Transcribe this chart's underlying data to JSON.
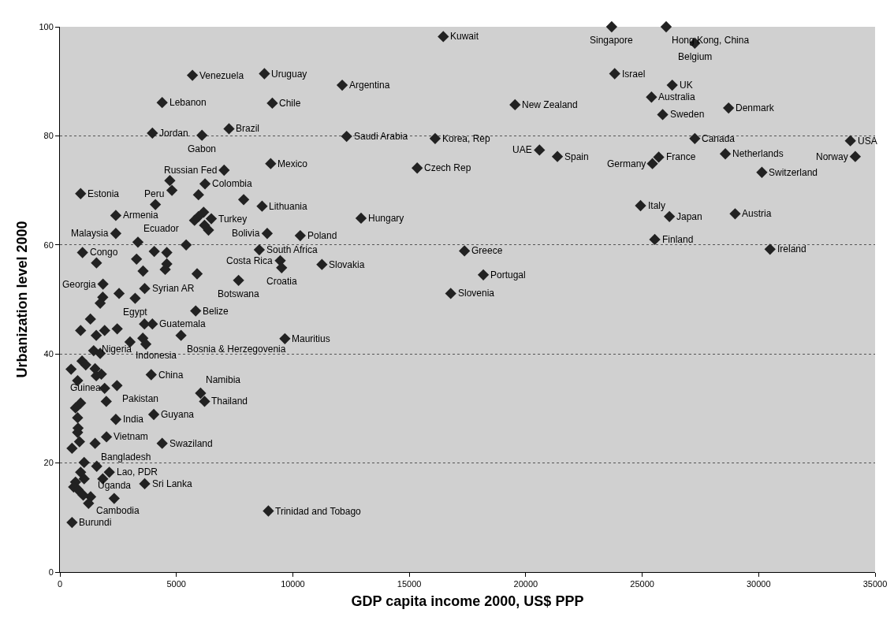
{
  "chart_data": {
    "type": "scatter",
    "xlabel": "GDP capita income 2000, US$ PPP",
    "ylabel": "Urbanization level 2000",
    "xlim": [
      0,
      35000
    ],
    "xticks": [
      0,
      5000,
      10000,
      15000,
      20000,
      25000,
      30000,
      35000
    ],
    "ylim": [
      0,
      100
    ],
    "yticks": [
      0,
      20,
      40,
      60,
      80,
      100
    ],
    "grid": "y",
    "marker": "diamond",
    "series": [
      {
        "color": "#222222",
        "x": [
          16460,
          23690,
          26030,
          27260,
          23820,
          26290,
          25400,
          19540,
          28710,
          25880,
          16110,
          27260,
          33940,
          20590,
          21360,
          25710,
          25440,
          28570,
          34150,
          15340,
          30140,
          24930,
          26170,
          28990,
          25540,
          30490,
          17370,
          18180,
          11250,
          9460,
          9520,
          16780,
          9660,
          8950,
          5690,
          8780,
          12120,
          4390,
          9120,
          3970,
          6100,
          7260,
          12310,
          9050,
          7050,
          12930,
          8680,
          8900,
          10320,
          7670,
          5830,
          8560,
          4720,
          6230,
          890,
          2400,
          6500,
          2400,
          3350,
          970,
          1850,
          3640,
          3230,
          3970,
          5200,
          1560,
          3010,
          3920,
          2450,
          6040,
          6210,
          1990,
          2400,
          4030,
          2000,
          1510,
          4390,
          2120,
          3640,
          1320,
          2330,
          520,
          4810,
          5950,
          7890,
          4100,
          6170,
          5950,
          5780,
          6210,
          6380,
          5420,
          4050,
          4590,
          1570,
          3290,
          4590,
          4520,
          3570,
          5890,
          2540,
          1840,
          1730,
          1310,
          3630,
          890,
          1920,
          2460,
          3560,
          3690,
          1450,
          1730,
          480,
          950,
          1110,
          1510,
          1780,
          1560,
          760,
          1920,
          890,
          670,
          760,
          780,
          760,
          840,
          520,
          1040,
          1580,
          890,
          1840,
          1040,
          670,
          590,
          780,
          1000,
          1230
        ],
        "values": [
          98.2,
          100,
          100,
          97.0,
          91.4,
          89.3,
          87.1,
          85.7,
          85.1,
          83.9,
          79.5,
          79.5,
          79.1,
          77.4,
          76.2,
          76.1,
          74.9,
          76.7,
          76.2,
          74.1,
          73.3,
          67.2,
          65.2,
          65.7,
          61.0,
          59.2,
          58.9,
          54.5,
          56.4,
          57.1,
          55.8,
          51.1,
          42.8,
          11.2,
          91.1,
          91.4,
          89.3,
          86.1,
          86.0,
          80.5,
          80.1,
          81.3,
          79.9,
          74.9,
          73.7,
          64.9,
          67.1,
          62.1,
          61.7,
          53.5,
          47.9,
          59.1,
          71.8,
          71.2,
          69.4,
          65.4,
          64.8,
          62.1,
          60.5,
          58.6,
          52.8,
          52.0,
          50.2,
          45.5,
          43.4,
          43.4,
          42.2,
          36.2,
          34.2,
          32.8,
          31.3,
          31.3,
          28.0,
          28.9,
          24.8,
          23.6,
          23.6,
          18.3,
          16.2,
          13.8,
          13.5,
          9.1,
          70.0,
          69.2,
          68.3,
          67.4,
          66.0,
          65.2,
          64.5,
          63.6,
          62.7,
          60.0,
          58.8,
          58.6,
          56.7,
          57.4,
          56.5,
          55.5,
          55.2,
          54.7,
          51.1,
          50.4,
          49.3,
          46.4,
          45.5,
          44.3,
          44.3,
          44.6,
          42.9,
          41.8,
          40.6,
          40.1,
          37.2,
          38.7,
          38.0,
          37.3,
          36.3,
          36.0,
          35.1,
          33.7,
          31.0,
          30.1,
          28.3,
          26.4,
          25.6,
          23.9,
          22.7,
          20.1,
          19.4,
          18.3,
          17.1,
          17.1,
          16.5,
          15.6,
          15.1,
          14.1,
          12.6
        ]
      }
    ],
    "annotations": [
      {
        "text": "Kuwait",
        "x": 16460,
        "y": 98.2
      },
      {
        "text": "Singapore",
        "x": 23690,
        "y": 100
      },
      {
        "text": "Hong Kong, China",
        "x": 26030,
        "y": 100
      },
      {
        "text": "Belgium",
        "x": 27260,
        "y": 97.0
      },
      {
        "text": "Israel",
        "x": 23820,
        "y": 91.4
      },
      {
        "text": "UK",
        "x": 26290,
        "y": 89.3
      },
      {
        "text": "Australia",
        "x": 25400,
        "y": 87.1
      },
      {
        "text": "New Zealand",
        "x": 19540,
        "y": 85.7
      },
      {
        "text": "Denmark",
        "x": 28710,
        "y": 85.1
      },
      {
        "text": "Sweden",
        "x": 25880,
        "y": 83.9
      },
      {
        "text": "Korea, Rep",
        "x": 16110,
        "y": 79.5
      },
      {
        "text": "Canada",
        "x": 27260,
        "y": 79.5
      },
      {
        "text": "USA",
        "x": 33940,
        "y": 79.1
      },
      {
        "text": "UAE",
        "x": 20590,
        "y": 77.4
      },
      {
        "text": "Spain",
        "x": 21360,
        "y": 76.2
      },
      {
        "text": "France",
        "x": 25710,
        "y": 76.1
      },
      {
        "text": "Germany",
        "x": 25440,
        "y": 74.9
      },
      {
        "text": "Netherlands",
        "x": 28570,
        "y": 76.7
      },
      {
        "text": "Norway",
        "x": 34150,
        "y": 76.2
      },
      {
        "text": "Czech Rep",
        "x": 15340,
        "y": 74.1
      },
      {
        "text": "Switzerland",
        "x": 30140,
        "y": 73.3
      },
      {
        "text": "Italy",
        "x": 24930,
        "y": 67.2
      },
      {
        "text": "Japan",
        "x": 26170,
        "y": 65.2
      },
      {
        "text": "Austria",
        "x": 28990,
        "y": 65.7
      },
      {
        "text": "Finland",
        "x": 25540,
        "y": 61.0
      },
      {
        "text": "Ireland",
        "x": 30490,
        "y": 59.2
      },
      {
        "text": "Greece",
        "x": 17370,
        "y": 58.9
      },
      {
        "text": "Portugal",
        "x": 18180,
        "y": 54.5
      },
      {
        "text": "Slovakia",
        "x": 11250,
        "y": 56.4
      },
      {
        "text": "Costa Rica",
        "x": 9460,
        "y": 57.1
      },
      {
        "text": "Croatia",
        "x": 9520,
        "y": 55.8
      },
      {
        "text": "Slovenia",
        "x": 16780,
        "y": 51.1
      },
      {
        "text": "Mauritius",
        "x": 9660,
        "y": 42.8
      },
      {
        "text": "Trinidad and Tobago",
        "x": 8950,
        "y": 11.2
      },
      {
        "text": "Venezuela",
        "x": 5690,
        "y": 91.1
      },
      {
        "text": "Uruguay",
        "x": 8780,
        "y": 91.4
      },
      {
        "text": "Argentina",
        "x": 12120,
        "y": 89.3
      },
      {
        "text": "Lebanon",
        "x": 4390,
        "y": 86.1
      },
      {
        "text": "Chile",
        "x": 9120,
        "y": 86.0
      },
      {
        "text": "Jordan",
        "x": 3970,
        "y": 80.5
      },
      {
        "text": "Gabon",
        "x": 6100,
        "y": 80.1
      },
      {
        "text": "Brazil",
        "x": 7260,
        "y": 81.3
      },
      {
        "text": "Saudi Arabia",
        "x": 12310,
        "y": 79.9
      },
      {
        "text": "Mexico",
        "x": 9050,
        "y": 74.9
      },
      {
        "text": "Russian Fed",
        "x": 7050,
        "y": 73.7
      },
      {
        "text": "Hungary",
        "x": 12930,
        "y": 64.9
      },
      {
        "text": "Lithuania",
        "x": 8680,
        "y": 67.1
      },
      {
        "text": "Bolivia",
        "x": 8900,
        "y": 62.1
      },
      {
        "text": "Poland",
        "x": 10320,
        "y": 61.7
      },
      {
        "text": "Botswana",
        "x": 7670,
        "y": 53.5
      },
      {
        "text": "Belize",
        "x": 5830,
        "y": 47.9
      },
      {
        "text": "South Africa",
        "x": 8560,
        "y": 59.1
      },
      {
        "text": "Peru",
        "x": 4720,
        "y": 71.8
      },
      {
        "text": "Colombia",
        "x": 6230,
        "y": 71.2
      },
      {
        "text": "Estonia",
        "x": 890,
        "y": 69.4
      },
      {
        "text": "Armenia",
        "x": 2400,
        "y": 65.4
      },
      {
        "text": "Turkey",
        "x": 6500,
        "y": 64.8
      },
      {
        "text": "Malaysia",
        "x": 2400,
        "y": 62.1
      },
      {
        "text": "Ecuador",
        "x": 3350,
        "y": 60.5
      },
      {
        "text": "Congo",
        "x": 970,
        "y": 58.6
      },
      {
        "text": "Georgia",
        "x": 1850,
        "y": 52.8
      },
      {
        "text": "Syrian AR",
        "x": 3640,
        "y": 52.0
      },
      {
        "text": "Egypt",
        "x": 3230,
        "y": 50.2
      },
      {
        "text": "Guatemala",
        "x": 3970,
        "y": 45.5
      },
      {
        "text": "Bosnia & Herzegovenia",
        "x": 5200,
        "y": 43.4
      },
      {
        "text": "Nigeria",
        "x": 1560,
        "y": 43.4
      },
      {
        "text": "Indonesia",
        "x": 3010,
        "y": 42.2
      },
      {
        "text": "China",
        "x": 3920,
        "y": 36.2
      },
      {
        "text": "Pakistan",
        "x": 2450,
        "y": 34.2
      },
      {
        "text": "Namibia",
        "x": 6040,
        "y": 32.8
      },
      {
        "text": "Thailand",
        "x": 6210,
        "y": 31.3
      },
      {
        "text": "Guinea",
        "x": 1990,
        "y": 31.3
      },
      {
        "text": "India",
        "x": 2400,
        "y": 28.0
      },
      {
        "text": "Guyana",
        "x": 4030,
        "y": 28.9
      },
      {
        "text": "Vietnam",
        "x": 2000,
        "y": 24.8
      },
      {
        "text": "Bangladesh",
        "x": 1510,
        "y": 23.6
      },
      {
        "text": "Swaziland",
        "x": 4390,
        "y": 23.6
      },
      {
        "text": "Lao, PDR",
        "x": 2120,
        "y": 18.3
      },
      {
        "text": "Sri Lanka",
        "x": 3640,
        "y": 16.2
      },
      {
        "text": "Cambodia",
        "x": 1320,
        "y": 13.8
      },
      {
        "text": "Uganda",
        "x": 2330,
        "y": 13.5
      },
      {
        "text": "Burundi",
        "x": 520,
        "y": 9.1
      }
    ]
  }
}
